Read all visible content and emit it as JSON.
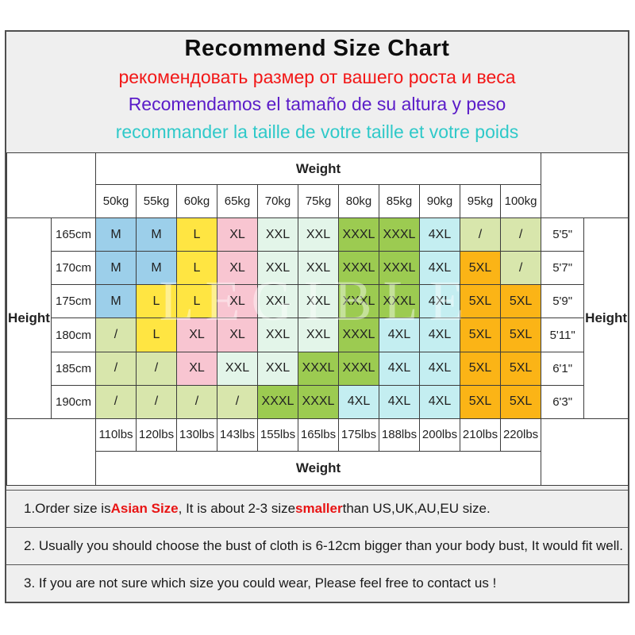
{
  "page": {
    "background": "#ffffff",
    "panel_background": "#efefef",
    "panel_border": "#4f4f4f"
  },
  "header": {
    "title": "Recommend Size Chart",
    "subtitle_ru": "рекомендовать размер от вашего роста и веса",
    "subtitle_es": "Recomendamos el tamaño de su altura y peso",
    "subtitle_fr": "recommander la taille de votre taille et votre poids",
    "colors": {
      "title": "#0d0d0d",
      "ru": "#f21717",
      "es": "#5a1bc8",
      "fr": "#2fc9c9"
    }
  },
  "chart_data": {
    "type": "table",
    "title": "Recommend Size Chart",
    "weight_header": "Weight",
    "weight_footer": "Weight",
    "height_label_left": "Height",
    "height_label_right": "Height",
    "weights_kg": [
      "50kg",
      "55kg",
      "60kg",
      "65kg",
      "70kg",
      "75kg",
      "80kg",
      "85kg",
      "90kg",
      "95kg",
      "100kg"
    ],
    "weights_lbs": [
      "110lbs",
      "120lbs",
      "130lbs",
      "143lbs",
      "155lbs",
      "165lbs",
      "175lbs",
      "188lbs",
      "200lbs",
      "210lbs",
      "220lbs"
    ],
    "rows": [
      {
        "cm": "165cm",
        "ft": "5'5\"",
        "sizes": [
          "M",
          "M",
          "L",
          "XL",
          "XXL",
          "XXL",
          "XXXL",
          "XXXL",
          "4XL",
          "/",
          "/"
        ]
      },
      {
        "cm": "170cm",
        "ft": "5'7\"",
        "sizes": [
          "M",
          "M",
          "L",
          "XL",
          "XXL",
          "XXL",
          "XXXL",
          "XXXL",
          "4XL",
          "5XL",
          "/"
        ]
      },
      {
        "cm": "175cm",
        "ft": "5'9\"",
        "sizes": [
          "M",
          "L",
          "L",
          "XL",
          "XXL",
          "XXL",
          "XXXL",
          "XXXL",
          "4XL",
          "5XL",
          "5XL"
        ]
      },
      {
        "cm": "180cm",
        "ft": "5'11\"",
        "sizes": [
          "/",
          "L",
          "XL",
          "XL",
          "XXL",
          "XXL",
          "XXXL",
          "4XL",
          "4XL",
          "5XL",
          "5XL"
        ]
      },
      {
        "cm": "185cm",
        "ft": "6'1\"",
        "sizes": [
          "/",
          "/",
          "XL",
          "XXL",
          "XXL",
          "XXXL",
          "XXXL",
          "4XL",
          "4XL",
          "5XL",
          "5XL"
        ]
      },
      {
        "cm": "190cm",
        "ft": "6'3\"",
        "sizes": [
          "/",
          "/",
          "/",
          "/",
          "XXXL",
          "XXXL",
          "4XL",
          "4XL",
          "4XL",
          "5XL",
          "5XL"
        ]
      }
    ],
    "size_colors": {
      "M": "#9ccfea",
      "L": "#ffe542",
      "XL": "#f8c5d1",
      "XXL": "#e3f5e9",
      "XXXL": "#9ccb51",
      "4XL": "#c4eef1",
      "5XL": "#fbb416",
      "/": "#d8e6ac"
    },
    "empty_marker": "/",
    "watermark": "LEGIBLE"
  },
  "notes": {
    "red_color": "#e81414",
    "items": [
      {
        "segments": [
          {
            "text": "1.Order size is ",
            "red": false
          },
          {
            "text": "Asian Size",
            "red": true
          },
          {
            "text": ", It is about 2-3 size ",
            "red": false
          },
          {
            "text": "smaller",
            "red": true
          },
          {
            "text": " than US,UK,AU,EU size.",
            "red": false
          }
        ]
      },
      {
        "segments": [
          {
            "text": "2. Usually you should choose the bust of cloth is 6-12cm bigger than your body bust, It would fit well.",
            "red": false
          }
        ]
      },
      {
        "segments": [
          {
            "text": "3. If you are not sure which size you could wear, Please feel free to contact us !",
            "red": false
          }
        ]
      }
    ]
  }
}
